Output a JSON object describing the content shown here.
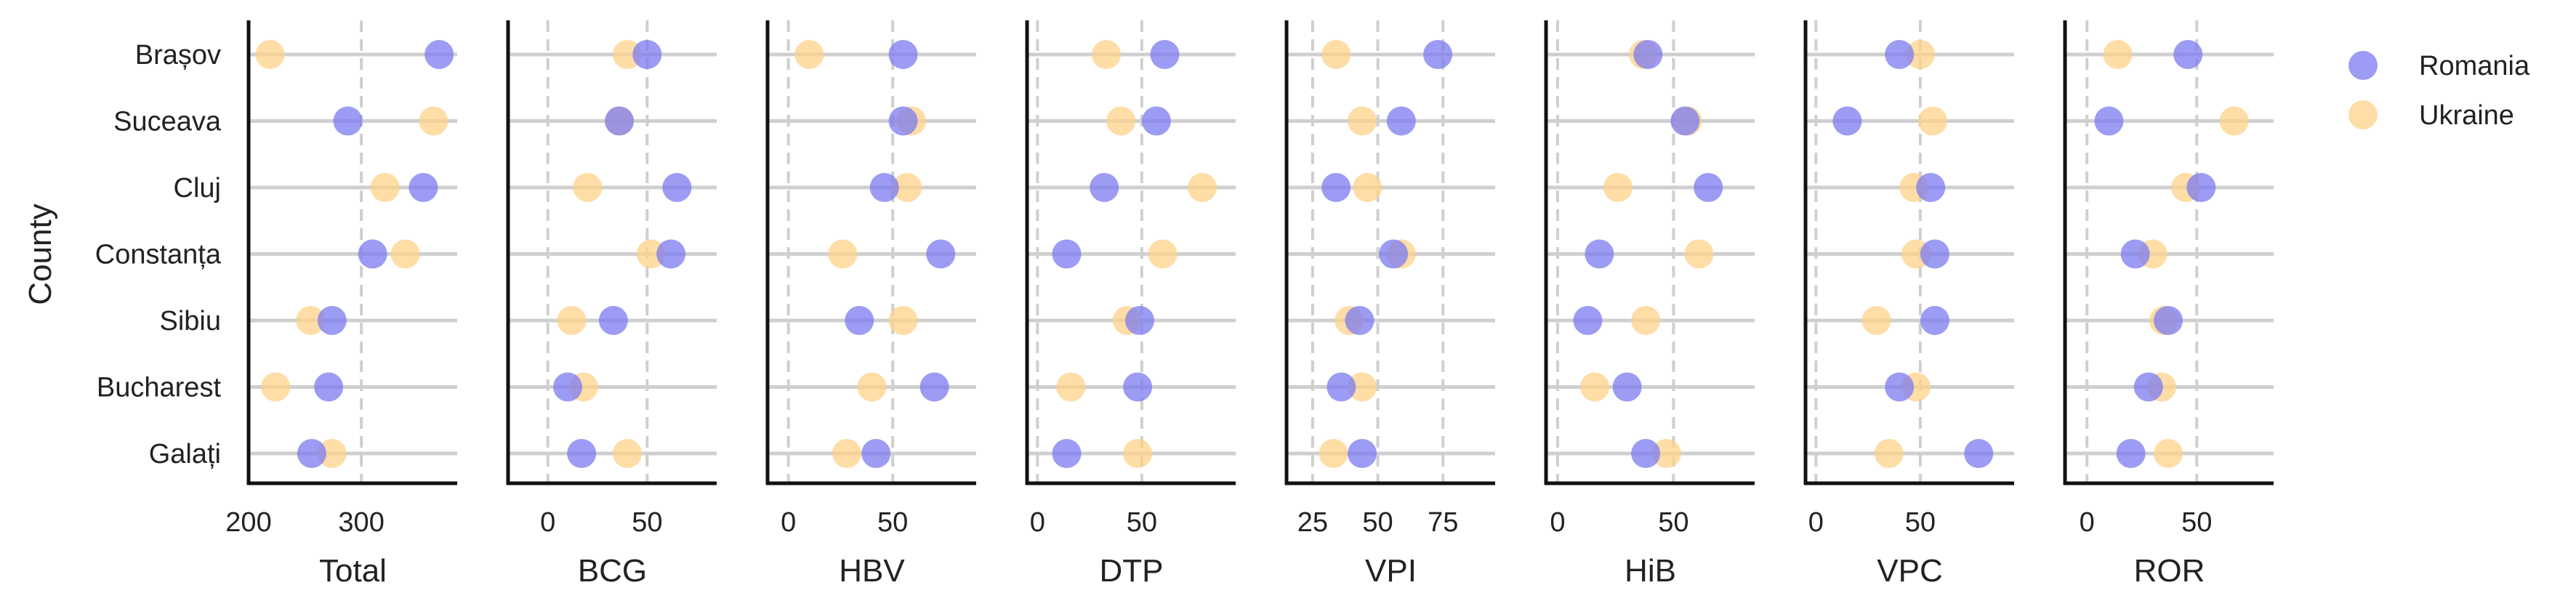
{
  "chart_data": {
    "type": "scatter",
    "ylabel": "County",
    "categories": [
      "Brașov",
      "Suceava",
      "Cluj",
      "Constanța",
      "Sibiu",
      "Bucharest",
      "Galați"
    ],
    "grid": "horizontal lines per county; dashed vertical lines at x tick values",
    "legend": {
      "placement": "right",
      "entries": [
        "Romania",
        "Ukraine"
      ]
    },
    "colors": {
      "Romania": "#7b7bf0",
      "Ukraine": "#fdd28a"
    },
    "panels": [
      {
        "xlabel": "Total",
        "xlim": [
          200,
          385
        ],
        "xticks": [
          200,
          300
        ],
        "xticklabels": [
          "200",
          "300"
        ],
        "series": [
          {
            "name": "Romania",
            "values": [
              369,
              288,
              355,
              310,
              274,
              271,
              256
            ]
          },
          {
            "name": "Ukraine",
            "values": [
              219,
              364,
              321,
              339,
              255,
              224,
              274
            ]
          }
        ]
      },
      {
        "xlabel": "BCG",
        "xlim": [
          -20,
          85
        ],
        "xticks": [
          0,
          50
        ],
        "xticklabels": [
          "0",
          "50"
        ],
        "series": [
          {
            "name": "Romania",
            "values": [
              50,
              36,
              65,
              62,
              33,
              10,
              17
            ]
          },
          {
            "name": "Ukraine",
            "values": [
              40,
              36,
              20,
              52,
              12,
              18,
              40
            ]
          }
        ]
      },
      {
        "xlabel": "HBV",
        "xlim": [
          -10,
          90
        ],
        "xticks": [
          0,
          50
        ],
        "xticklabels": [
          "0",
          "50"
        ],
        "series": [
          {
            "name": "Romania",
            "values": [
              55,
              55,
              46,
              73,
              34,
              70,
              42
            ]
          },
          {
            "name": "Ukraine",
            "values": [
              10,
              59,
              57,
              26,
              55,
              40,
              28
            ]
          }
        ]
      },
      {
        "xlabel": "DTP",
        "xlim": [
          -5,
          95
        ],
        "xticks": [
          0,
          50
        ],
        "xticklabels": [
          "0",
          "50"
        ],
        "series": [
          {
            "name": "Romania",
            "values": [
              61,
              57,
              32,
              14,
              49,
              48,
              14
            ]
          },
          {
            "name": "Ukraine",
            "values": [
              33,
              40,
              79,
              60,
              43,
              16,
              48
            ]
          }
        ]
      },
      {
        "xlabel": "VPI",
        "xlim": [
          15,
          95
        ],
        "xticks": [
          25,
          50,
          75
        ],
        "xticklabels": [
          "25",
          "50",
          "75"
        ],
        "series": [
          {
            "name": "Romania",
            "values": [
              73,
              59,
              34,
              56,
              43,
              36,
              44
            ]
          },
          {
            "name": "Ukraine",
            "values": [
              34,
              44,
              46,
              59,
              39,
              44,
              33
            ]
          }
        ]
      },
      {
        "xlabel": "HiB",
        "xlim": [
          -5,
          85
        ],
        "xticks": [
          0,
          50
        ],
        "xticklabels": [
          "0",
          "50"
        ],
        "series": [
          {
            "name": "Romania",
            "values": [
              39,
              55,
              65,
              18,
              13,
              30,
              38
            ]
          },
          {
            "name": "Ukraine",
            "values": [
              37,
              56,
              26,
              61,
              38,
              16,
              47
            ]
          }
        ]
      },
      {
        "xlabel": "VPC",
        "xlim": [
          -5,
          95
        ],
        "xticks": [
          0,
          50
        ],
        "xticklabels": [
          "0",
          "50"
        ],
        "series": [
          {
            "name": "Romania",
            "values": [
              40,
              15,
              55,
              57,
              57,
              40,
              78
            ]
          },
          {
            "name": "Ukraine",
            "values": [
              50,
              56,
              47,
              48,
              29,
              48,
              35
            ]
          }
        ]
      },
      {
        "xlabel": "ROR",
        "xlim": [
          -10,
          85
        ],
        "xticks": [
          0,
          50
        ],
        "xticklabels": [
          "0",
          "50"
        ],
        "series": [
          {
            "name": "Romania",
            "values": [
              46,
              10,
              52,
              22,
              37,
              28,
              20
            ]
          },
          {
            "name": "Ukraine",
            "values": [
              14,
              67,
              45,
              30,
              35,
              34,
              37
            ]
          }
        ]
      }
    ]
  }
}
